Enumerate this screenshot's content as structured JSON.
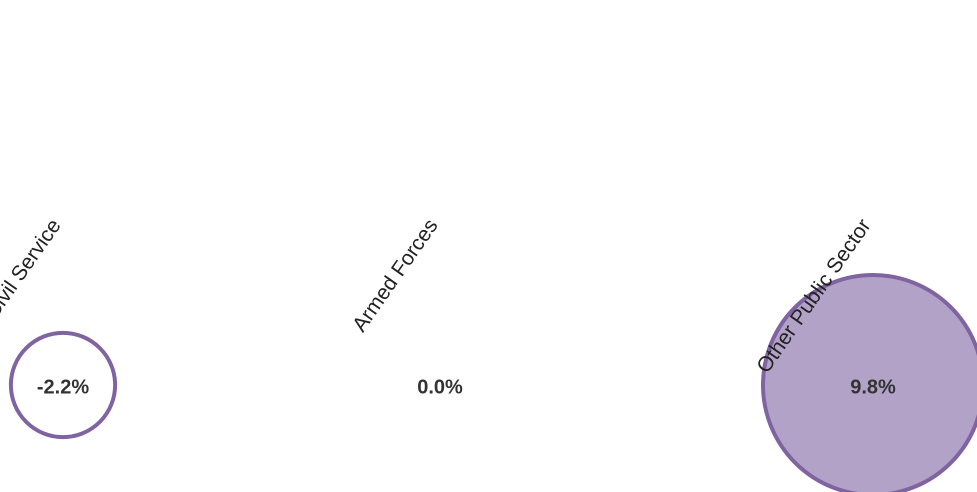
{
  "chart_data": {
    "type": "bubble",
    "categories": [
      "Reserved Civil Service",
      "Armed Forces",
      "Other Public Sector"
    ],
    "values": [
      -2.2,
      0.0,
      9.8
    ],
    "value_labels": [
      "-2.2%",
      "0.0%",
      "9.8%"
    ],
    "color": "#8064a2",
    "fill": "#b3a2c8"
  }
}
